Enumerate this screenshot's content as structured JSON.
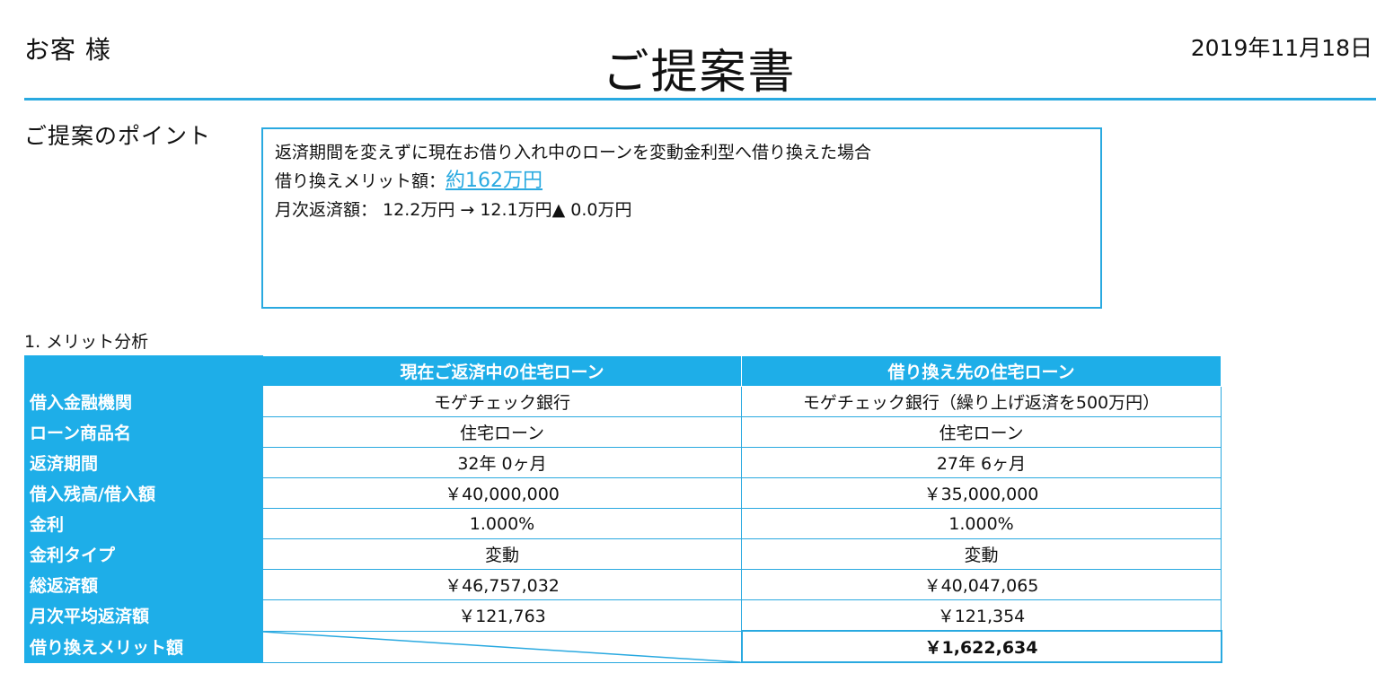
{
  "header": {
    "customer": "お客 様",
    "title": "ご提案書",
    "date": "2019年11月18日"
  },
  "points": {
    "label": "ご提案のポイント",
    "line1": "返済期間を変えずに現在お借り入れ中のローンを変動金利型へ借り換えた場合",
    "merit_label": "借り換えメリット額：",
    "merit_value": "約162万円",
    "line3": "月次返済額： 12.2万円 → 12.1万円▲ 0.0万円"
  },
  "analysis": {
    "heading": "1. メリット分析",
    "columns": [
      "現在ご返済中の住宅ローン",
      "借り換え先の住宅ローン"
    ],
    "rows": [
      {
        "label": "借入金融機関",
        "current": "モゲチェック銀行",
        "new": "モゲチェック銀行（繰り上げ返済を500万円）"
      },
      {
        "label": "ローン商品名",
        "current": "住宅ローン",
        "new": "住宅ローン"
      },
      {
        "label": "返済期間",
        "current": "32年 0ヶ月",
        "new": "27年 6ヶ月"
      },
      {
        "label": "借入残高/借入額",
        "current": "￥40,000,000",
        "new": "￥35,000,000"
      },
      {
        "label": "金利",
        "current": "1.000%",
        "new": "1.000%"
      },
      {
        "label": "金利タイプ",
        "current": "変動",
        "new": "変動"
      },
      {
        "label": "総返済額",
        "current": "￥46,757,032",
        "new": "￥40,047,065"
      },
      {
        "label": "月次平均返済額",
        "current": "￥121,763",
        "new": "￥121,354"
      }
    ],
    "merit_row": {
      "label": "借り換えメリット額",
      "value": "￥1,622,634"
    }
  }
}
